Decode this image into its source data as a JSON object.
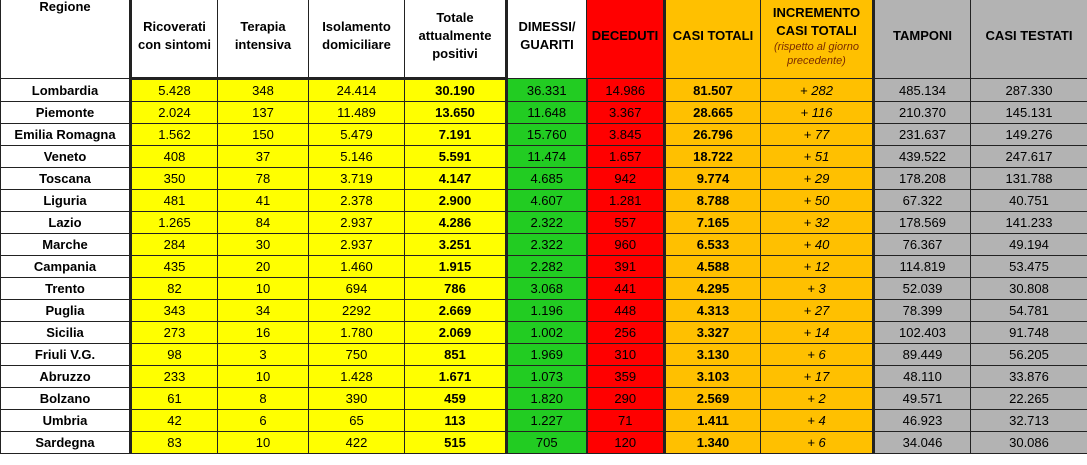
{
  "headers": {
    "regione": "Regione",
    "ricoverati": "Ricoverati con sintomi",
    "terapia": "Terapia intensiva",
    "isolamento": "Isolamento domiciliare",
    "totale": "Totale attualmente positivi",
    "dimessi": "DIMESSI/ GUARITI",
    "deceduti": "DECEDUTI",
    "casi_totali": "CASI TOTALI",
    "incremento": "INCREMENTO CASI TOTALI",
    "incremento_note": "(rispetto al giorno precedente)",
    "tamponi": "TAMPONI",
    "casi_testati": "CASI TESTATI"
  },
  "rows": [
    {
      "regione": "Lombardia",
      "ricoverati": "5.428",
      "terapia": "348",
      "isolamento": "24.414",
      "totale": "30.190",
      "dimessi": "36.331",
      "deceduti": "14.986",
      "casi_totali": "81.507",
      "incremento": "+ 282",
      "tamponi": "485.134",
      "casi_testati": "287.330"
    },
    {
      "regione": "Piemonte",
      "ricoverati": "2.024",
      "terapia": "137",
      "isolamento": "11.489",
      "totale": "13.650",
      "dimessi": "11.648",
      "deceduti": "3.367",
      "casi_totali": "28.665",
      "incremento": "+ 116",
      "tamponi": "210.370",
      "casi_testati": "145.131"
    },
    {
      "regione": "Emilia Romagna",
      "ricoverati": "1.562",
      "terapia": "150",
      "isolamento": "5.479",
      "totale": "7.191",
      "dimessi": "15.760",
      "deceduti": "3.845",
      "casi_totali": "26.796",
      "incremento": "+ 77",
      "tamponi": "231.637",
      "casi_testati": "149.276"
    },
    {
      "regione": "Veneto",
      "ricoverati": "408",
      "terapia": "37",
      "isolamento": "5.146",
      "totale": "5.591",
      "dimessi": "11.474",
      "deceduti": "1.657",
      "casi_totali": "18.722",
      "incremento": "+ 51",
      "tamponi": "439.522",
      "casi_testati": "247.617"
    },
    {
      "regione": "Toscana",
      "ricoverati": "350",
      "terapia": "78",
      "isolamento": "3.719",
      "totale": "4.147",
      "dimessi": "4.685",
      "deceduti": "942",
      "casi_totali": "9.774",
      "incremento": "+ 29",
      "tamponi": "178.208",
      "casi_testati": "131.788"
    },
    {
      "regione": "Liguria",
      "ricoverati": "481",
      "terapia": "41",
      "isolamento": "2.378",
      "totale": "2.900",
      "dimessi": "4.607",
      "deceduti": "1.281",
      "casi_totali": "8.788",
      "incremento": "+ 50",
      "tamponi": "67.322",
      "casi_testati": "40.751"
    },
    {
      "regione": "Lazio",
      "ricoverati": "1.265",
      "terapia": "84",
      "isolamento": "2.937",
      "totale": "4.286",
      "dimessi": "2.322",
      "deceduti": "557",
      "casi_totali": "7.165",
      "incremento": "+ 32",
      "tamponi": "178.569",
      "casi_testati": "141.233"
    },
    {
      "regione": "Marche",
      "ricoverati": "284",
      "terapia": "30",
      "isolamento": "2.937",
      "totale": "3.251",
      "dimessi": "2.322",
      "deceduti": "960",
      "casi_totali": "6.533",
      "incremento": "+ 40",
      "tamponi": "76.367",
      "casi_testati": "49.194"
    },
    {
      "regione": "Campania",
      "ricoverati": "435",
      "terapia": "20",
      "isolamento": "1.460",
      "totale": "1.915",
      "dimessi": "2.282",
      "deceduti": "391",
      "casi_totali": "4.588",
      "incremento": "+ 12",
      "tamponi": "114.819",
      "casi_testati": "53.475"
    },
    {
      "regione": "Trento",
      "ricoverati": "82",
      "terapia": "10",
      "isolamento": "694",
      "totale": "786",
      "dimessi": "3.068",
      "deceduti": "441",
      "casi_totali": "4.295",
      "incremento": "+ 3",
      "tamponi": "52.039",
      "casi_testati": "30.808"
    },
    {
      "regione": "Puglia",
      "ricoverati": "343",
      "terapia": "34",
      "isolamento": "2292",
      "totale": "2.669",
      "dimessi": "1.196",
      "deceduti": "448",
      "casi_totali": "4.313",
      "incremento": "+ 27",
      "tamponi": "78.399",
      "casi_testati": "54.781"
    },
    {
      "regione": "Sicilia",
      "ricoverati": "273",
      "terapia": "16",
      "isolamento": "1.780",
      "totale": "2.069",
      "dimessi": "1.002",
      "deceduti": "256",
      "casi_totali": "3.327",
      "incremento": "+ 14",
      "tamponi": "102.403",
      "casi_testati": "91.748"
    },
    {
      "regione": "Friuli V.G.",
      "ricoverati": "98",
      "terapia": "3",
      "isolamento": "750",
      "totale": "851",
      "dimessi": "1.969",
      "deceduti": "310",
      "casi_totali": "3.130",
      "incremento": "+ 6",
      "tamponi": "89.449",
      "casi_testati": "56.205"
    },
    {
      "regione": "Abruzzo",
      "ricoverati": "233",
      "terapia": "10",
      "isolamento": "1.428",
      "totale": "1.671",
      "dimessi": "1.073",
      "deceduti": "359",
      "casi_totali": "3.103",
      "incremento": "+ 17",
      "tamponi": "48.110",
      "casi_testati": "33.876"
    },
    {
      "regione": "Bolzano",
      "ricoverati": "61",
      "terapia": "8",
      "isolamento": "390",
      "totale": "459",
      "dimessi": "1.820",
      "deceduti": "290",
      "casi_totali": "2.569",
      "incremento": "+ 2",
      "tamponi": "49.571",
      "casi_testati": "22.265"
    },
    {
      "regione": "Umbria",
      "ricoverati": "42",
      "terapia": "6",
      "isolamento": "65",
      "totale": "113",
      "dimessi": "1.227",
      "deceduti": "71",
      "casi_totali": "1.411",
      "incremento": "+ 4",
      "tamponi": "46.923",
      "casi_testati": "32.713"
    },
    {
      "regione": "Sardegna",
      "ricoverati": "83",
      "terapia": "10",
      "isolamento": "422",
      "totale": "515",
      "dimessi": "705",
      "deceduti": "120",
      "casi_totali": "1.340",
      "incremento": "+ 6",
      "tamponi": "34.046",
      "casi_testati": "30.086"
    }
  ],
  "colors": {
    "positivi": "#ffff00",
    "dimessi": "#22cc22",
    "deceduti": "#ff0000",
    "casi_totali": "#ffc000",
    "tamponi": "#b3b3b3"
  }
}
